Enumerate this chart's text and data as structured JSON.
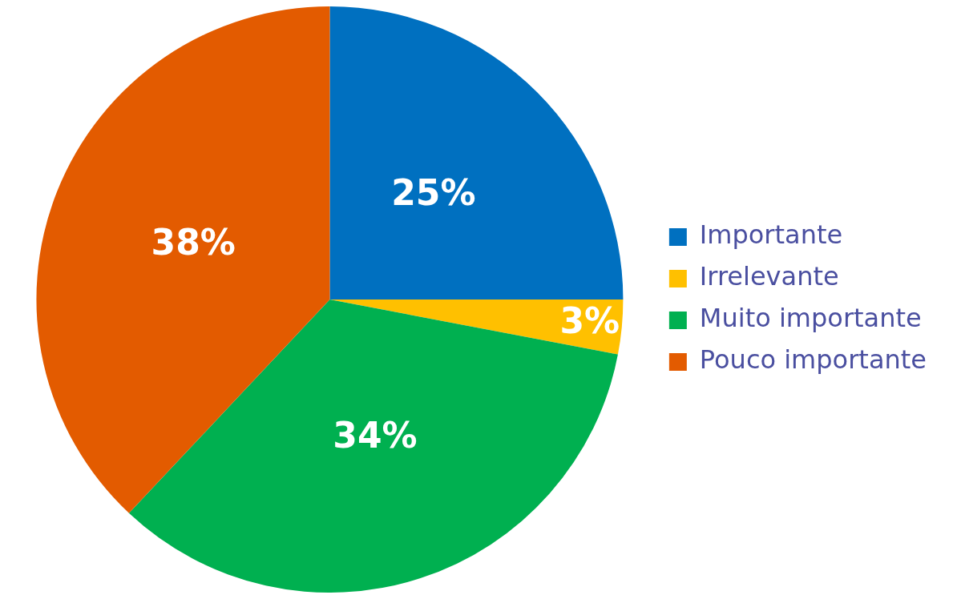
{
  "chart_data": {
    "type": "pie",
    "categories": [
      "Importante",
      "Irrelevante",
      "Muito importante",
      "Pouco importante"
    ],
    "values": [
      25,
      3,
      34,
      38
    ],
    "colors": [
      "#0070c0",
      "#ffc000",
      "#00b050",
      "#e35b00"
    ],
    "value_labels": [
      "25%",
      "3%",
      "34%",
      "38%"
    ],
    "legend": "right"
  }
}
